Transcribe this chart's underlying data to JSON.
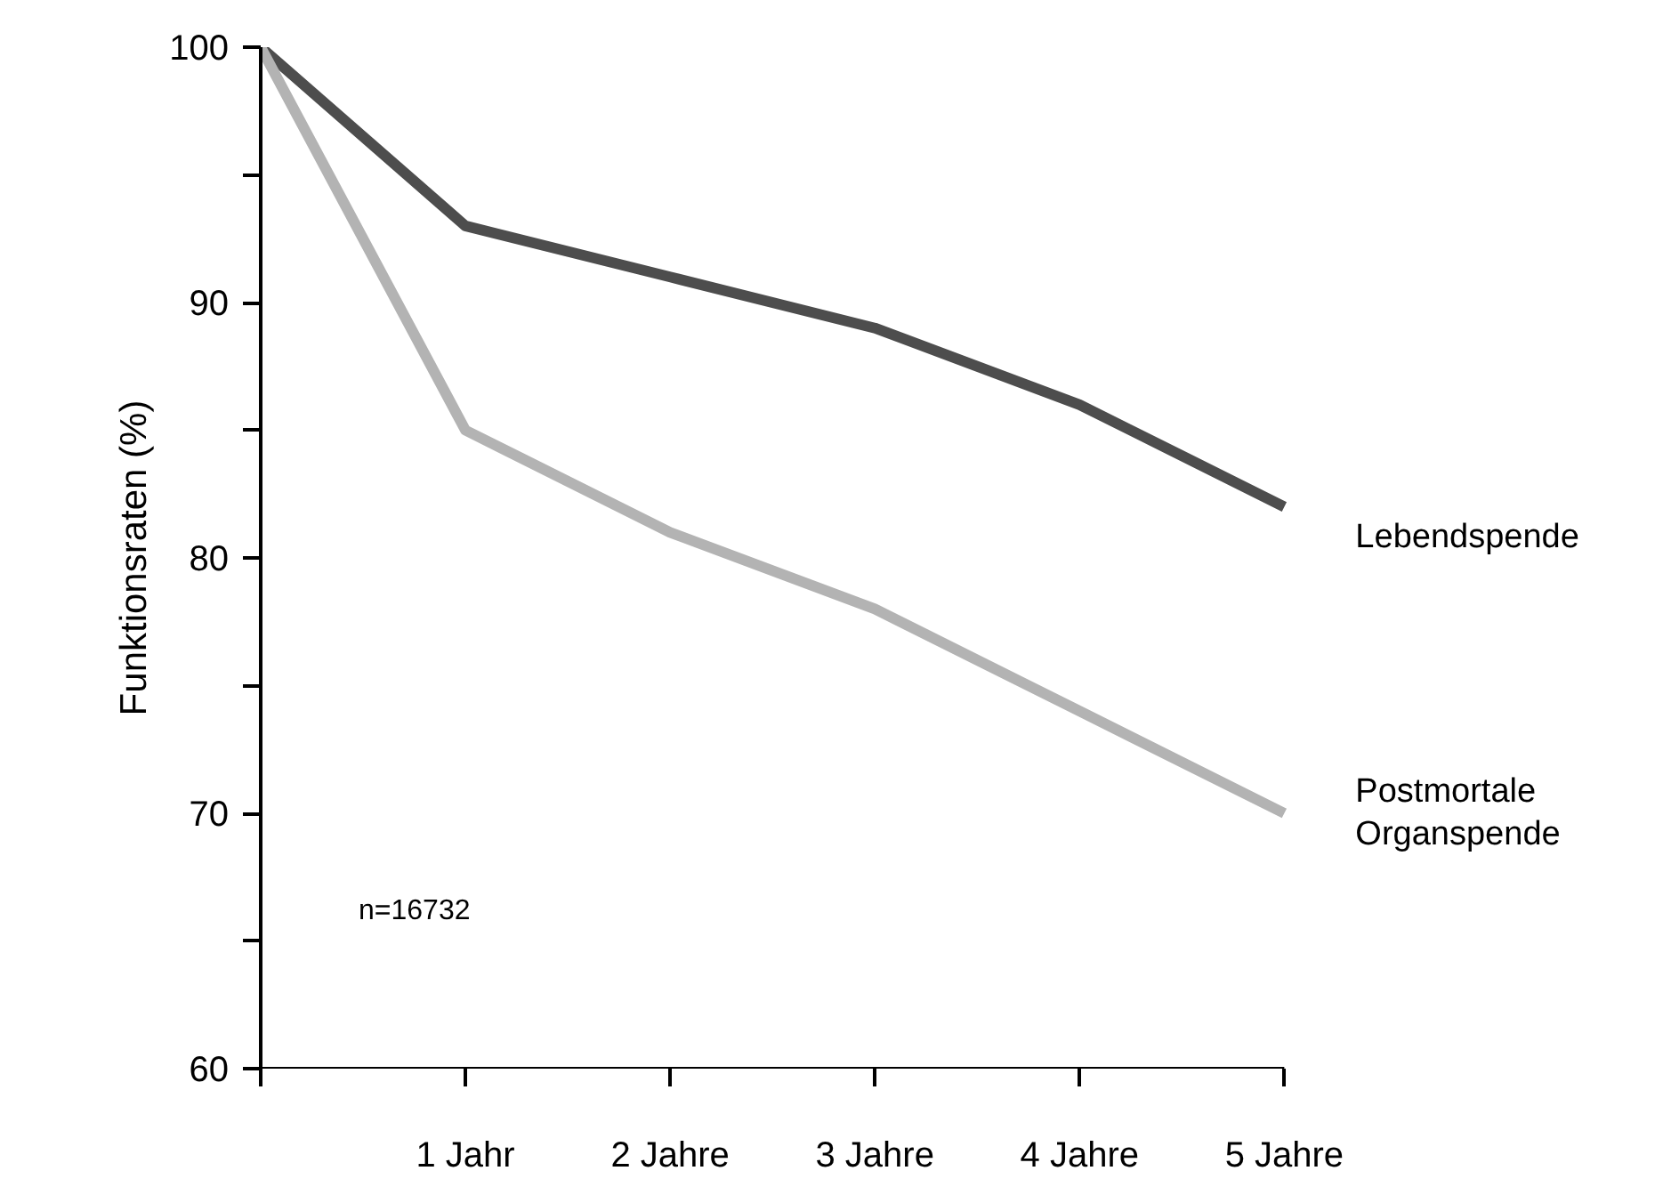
{
  "chart_data": {
    "type": "line",
    "ylabel": "Funktionsraten (%)",
    "x": [
      0,
      1,
      2,
      3,
      4,
      5
    ],
    "xlim": [
      0,
      5
    ],
    "xticks": [
      {
        "value": 0,
        "label": null
      },
      {
        "value": 1,
        "label": "1 Jahr"
      },
      {
        "value": 2,
        "label": "2 Jahre"
      },
      {
        "value": 3,
        "label": "3 Jahre"
      },
      {
        "value": 4,
        "label": "4 Jahre"
      },
      {
        "value": 5,
        "label": "5 Jahre"
      }
    ],
    "ylim": [
      60,
      100
    ],
    "yticks": [
      60,
      {
        "value": 65,
        "label": null
      },
      70,
      {
        "value": 75,
        "label": null
      },
      80,
      {
        "value": 85,
        "label": null
      },
      90,
      {
        "value": 95,
        "label": null
      },
      100
    ],
    "series": [
      {
        "name": "Lebendspende",
        "color": "#4d4d4d",
        "values": [
          100,
          93,
          91,
          89,
          86,
          82
        ]
      },
      {
        "name": "Postmortale\nOrganspende",
        "color": "#b3b3b3",
        "values": [
          100,
          85,
          81,
          78,
          74,
          70
        ]
      }
    ],
    "annotations": [
      "n=16732"
    ],
    "grid": false,
    "legend": false,
    "marker": "none",
    "line_style": "solid"
  }
}
